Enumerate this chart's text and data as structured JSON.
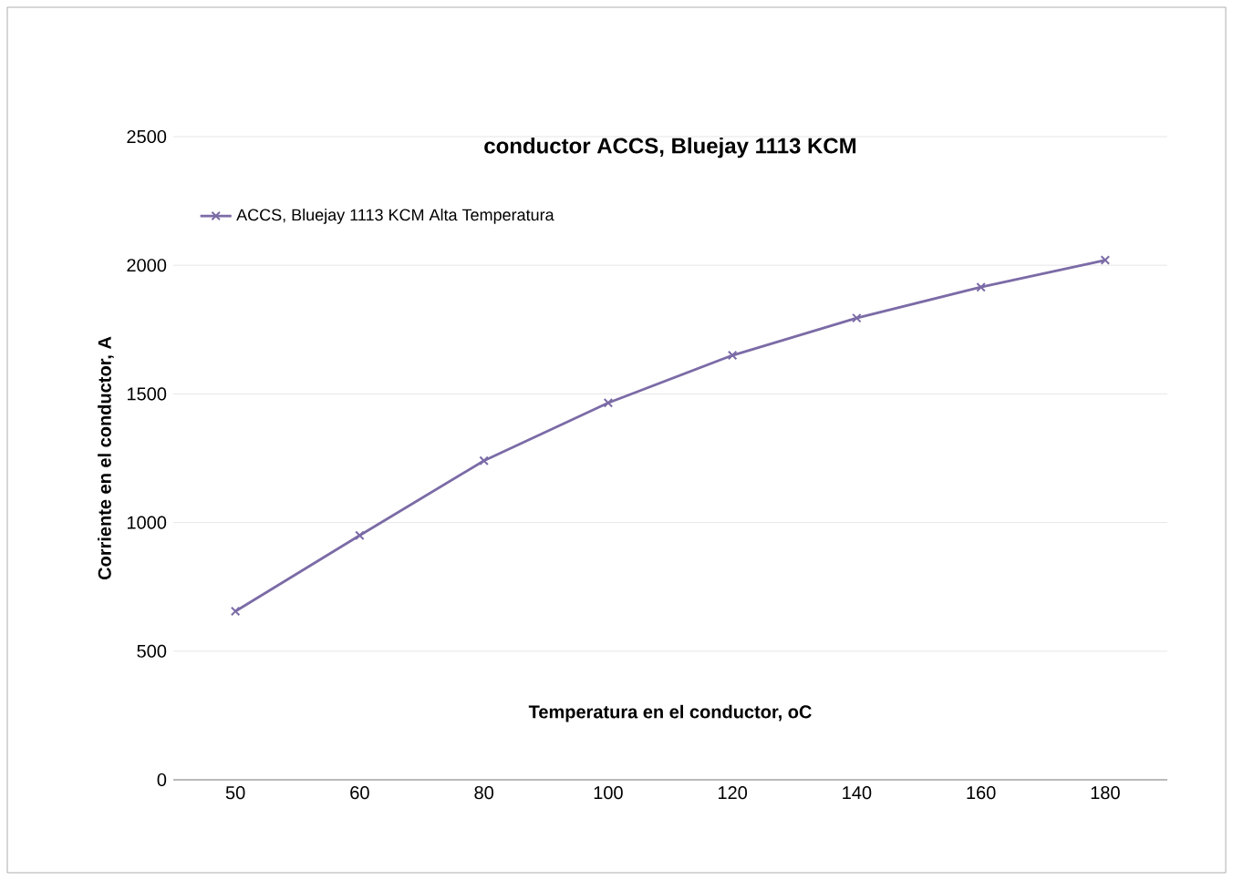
{
  "chart_data": {
    "type": "line",
    "title": "conductor ACCS, Bluejay 1113 KCM",
    "xlabel": "Temperatura en el conductor, oC",
    "ylabel": "Corriente en el conductor, A",
    "categories": [
      "50",
      "60",
      "80",
      "100",
      "120",
      "140",
      "160",
      "180"
    ],
    "series": [
      {
        "name": "ACCS, Bluejay 1113 KCM Alta Temperatura",
        "color": "#7b6ba6",
        "values": [
          655,
          950,
          1240,
          1465,
          1650,
          1795,
          1915,
          2020
        ]
      }
    ],
    "ylim": [
      0,
      2500
    ],
    "yticks": [
      0,
      500,
      1000,
      1500,
      2000,
      2500
    ],
    "grid": "y",
    "legend": "top left",
    "marker": "cross",
    "line_style": "solid"
  }
}
